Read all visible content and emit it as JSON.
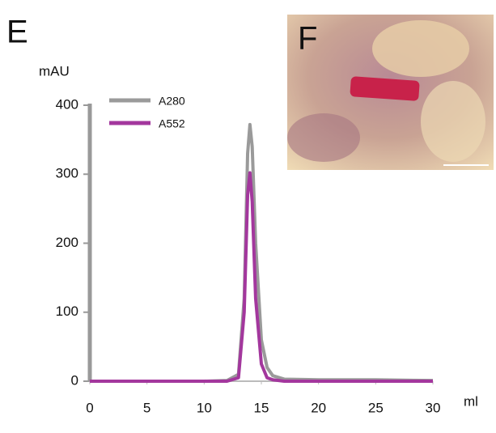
{
  "panel_labels": [
    "E",
    "F"
  ],
  "chart_data": {
    "type": "line",
    "y_label": "mAU",
    "x_label": "ml",
    "x": [
      0,
      5,
      10,
      12,
      13,
      13.5,
      13.8,
      14,
      14.2,
      14.5,
      15,
      15.5,
      16,
      17,
      20,
      25,
      30
    ],
    "series": [
      {
        "name": "A280",
        "color": "#9a9a9a",
        "values": [
          0,
          0,
          0,
          1,
          10,
          120,
          330,
          372,
          340,
          200,
          60,
          20,
          8,
          3,
          2,
          2,
          1
        ]
      },
      {
        "name": "A552",
        "color": "#a3379d",
        "values": [
          0,
          0,
          0,
          0,
          5,
          100,
          270,
          302,
          260,
          120,
          25,
          5,
          2,
          0,
          0,
          0,
          0
        ]
      }
    ],
    "xlim": [
      0,
      30
    ],
    "xticks": [
      0,
      5,
      10,
      15,
      20,
      25,
      30
    ],
    "ylim": [
      0,
      400
    ],
    "yticks": [
      0,
      100,
      200,
      300,
      400
    ],
    "grid": false,
    "legend": "top-left"
  }
}
